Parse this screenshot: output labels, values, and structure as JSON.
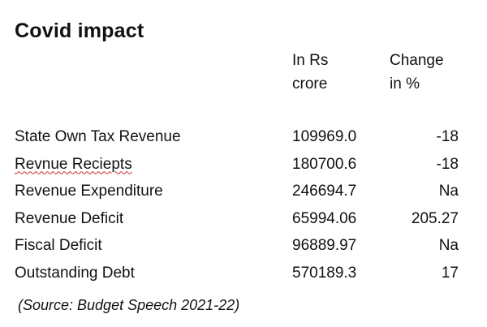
{
  "title": "Covid impact",
  "headers": {
    "amount_line1": "In Rs",
    "amount_line2": "crore",
    "change_line1": "Change",
    "change_line2": "in %"
  },
  "rows": [
    {
      "label": "State Own Tax Revenue",
      "amount": "109969.0",
      "change": "-18"
    },
    {
      "label": "Revnue Reciepts",
      "amount": "180700.6",
      "change": "-18"
    },
    {
      "label": "Revenue Expenditure",
      "amount": "246694.7",
      "change": "Na"
    },
    {
      "label": "Revenue Deficit",
      "amount": "65994.06",
      "change": "205.27"
    },
    {
      "label": "Fiscal Deficit",
      "amount": "96889.97",
      "change": "Na"
    },
    {
      "label": "Outstanding Debt",
      "amount": "570189.3",
      "change": "17"
    }
  ],
  "source": "(Source: Budget Speech 2021-22)",
  "colors": {
    "text": "#111111",
    "spellcheck_underline": "#d22b2b"
  }
}
